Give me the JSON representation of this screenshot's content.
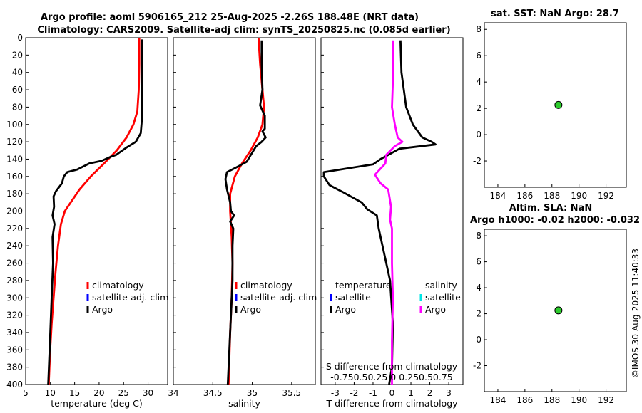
{
  "header": {
    "title_line1": "Argo profile: aoml 5906165_212 25-Aug-2025 -2.26S 188.48E (NRT data)",
    "title_line2": "Climatology: CARS2009. Satellite-adj clim: synTS_20250825.nc (0.085d earlier)"
  },
  "sst_title": "sat. SST: NaN Argo: 28.7",
  "sla_title_line1": "Altim. SLA: NaN",
  "sla_title_line2": "Argo h1000: -0.02 h2000: -0.032",
  "footer_stamp": "©IMOS 30-Aug-2025 11:40:33",
  "s_diff_label_line1": "S difference from climatology",
  "s_diff_label_line2": "-0.750.50.25 0 0.250.50.75",
  "colors": {
    "climatology": "#ff0000",
    "satellite": "#0000ff",
    "satellite_salinity": "#00e5e5",
    "argo": "#000000",
    "salinity_diff": "#ff00ff",
    "marker": "#2ecc2e"
  },
  "chart_data": [
    {
      "id": "temperature",
      "type": "line",
      "xlabel": "temperature (deg C)",
      "ylabel": "",
      "xlim": [
        5,
        34
      ],
      "ylim": [
        0,
        400
      ],
      "y_reversed": true,
      "xticks": [
        5,
        10,
        15,
        20,
        25,
        30
      ],
      "yticks": [
        0,
        20,
        40,
        60,
        80,
        100,
        120,
        140,
        160,
        180,
        200,
        220,
        240,
        260,
        280,
        300,
        320,
        340,
        360,
        380,
        400
      ],
      "legend": {
        "position": "center-right",
        "entries": [
          "climatology",
          "satellite-adj. clim",
          "Argo"
        ]
      },
      "series": [
        {
          "name": "climatology",
          "color_key": "climatology",
          "points": [
            [
              28.2,
              0
            ],
            [
              28.2,
              30
            ],
            [
              28.1,
              60
            ],
            [
              27.8,
              85
            ],
            [
              27.0,
              100
            ],
            [
              25.6,
              115
            ],
            [
              23.6,
              130
            ],
            [
              21.0,
              145
            ],
            [
              18.3,
              160
            ],
            [
              16.0,
              175
            ],
            [
              14.2,
              190
            ],
            [
              13.0,
              200
            ],
            [
              12.2,
              215
            ],
            [
              11.6,
              240
            ],
            [
              11.1,
              270
            ],
            [
              10.7,
              300
            ],
            [
              10.3,
              330
            ],
            [
              10.0,
              360
            ],
            [
              9.7,
              400
            ]
          ]
        },
        {
          "name": "Argo",
          "color_key": "argo",
          "points": [
            [
              28.7,
              2
            ],
            [
              28.7,
              40
            ],
            [
              28.8,
              90
            ],
            [
              28.5,
              110
            ],
            [
              27.5,
              120
            ],
            [
              25.5,
              127
            ],
            [
              23.5,
              135
            ],
            [
              22.5,
              137
            ],
            [
              20.5,
              142
            ],
            [
              18.0,
              145
            ],
            [
              15.5,
              152
            ],
            [
              13.5,
              155
            ],
            [
              12.8,
              160
            ],
            [
              12.4,
              168
            ],
            [
              11.2,
              177
            ],
            [
              10.7,
              183
            ],
            [
              10.8,
              195
            ],
            [
              10.5,
              205
            ],
            [
              10.9,
              215
            ],
            [
              10.5,
              230
            ],
            [
              10.6,
              260
            ],
            [
              10.3,
              300
            ],
            [
              10.1,
              330
            ],
            [
              9.9,
              360
            ],
            [
              9.6,
              400
            ]
          ]
        }
      ]
    },
    {
      "id": "salinity",
      "type": "line",
      "xlabel": "salinity",
      "ylabel": "",
      "xlim": [
        34,
        35.8
      ],
      "ylim": [
        0,
        400
      ],
      "y_reversed": true,
      "xticks": [
        34,
        34.5,
        35,
        35.5
      ],
      "legend": {
        "position": "center-right",
        "entries": [
          "climatology",
          "satellite-adj. clim",
          "Argo"
        ]
      },
      "series": [
        {
          "name": "climatology",
          "color_key": "climatology",
          "points": [
            [
              35.08,
              0
            ],
            [
              35.1,
              30
            ],
            [
              35.13,
              60
            ],
            [
              35.15,
              80
            ],
            [
              35.13,
              100
            ],
            [
              35.07,
              115
            ],
            [
              34.98,
              130
            ],
            [
              34.87,
              145
            ],
            [
              34.78,
              160
            ],
            [
              34.72,
              180
            ],
            [
              34.72,
              200
            ],
            [
              34.74,
              230
            ],
            [
              34.75,
              260
            ],
            [
              34.74,
              300
            ],
            [
              34.72,
              340
            ],
            [
              34.7,
              400
            ]
          ]
        },
        {
          "name": "Argo",
          "color_key": "argo",
          "points": [
            [
              35.12,
              3
            ],
            [
              35.12,
              30
            ],
            [
              35.13,
              60
            ],
            [
              35.1,
              78
            ],
            [
              35.16,
              90
            ],
            [
              35.16,
              105
            ],
            [
              35.13,
              108
            ],
            [
              35.17,
              115
            ],
            [
              35.12,
              120
            ],
            [
              35.05,
              125
            ],
            [
              34.97,
              137
            ],
            [
              34.93,
              143
            ],
            [
              34.83,
              148
            ],
            [
              34.68,
              155
            ],
            [
              34.66,
              163
            ],
            [
              34.68,
              175
            ],
            [
              34.72,
              190
            ],
            [
              34.73,
              200
            ],
            [
              34.77,
              205
            ],
            [
              34.72,
              212
            ],
            [
              34.76,
              220
            ],
            [
              34.75,
              240
            ],
            [
              34.75,
              280
            ],
            [
              34.73,
              320
            ],
            [
              34.71,
              360
            ],
            [
              34.69,
              400
            ]
          ]
        }
      ]
    },
    {
      "id": "difference",
      "type": "line",
      "xlabel": "T difference from climatology",
      "ylabel": "",
      "xlim": [
        -3.75,
        3.75
      ],
      "ylim": [
        0,
        400
      ],
      "y_reversed": true,
      "xticks": [
        -3,
        -2,
        -1,
        0,
        1,
        2,
        3
      ],
      "legend": {
        "position": "center",
        "groups": [
          {
            "title": "temperature",
            "entries": [
              "satellite",
              "Argo"
            ]
          },
          {
            "title": "salinity",
            "entries": [
              "satellite",
              "Argo"
            ]
          }
        ]
      },
      "series": [
        {
          "name": "T difference (Argo)",
          "color_key": "argo",
          "points": [
            [
              0.45,
              3
            ],
            [
              0.5,
              40
            ],
            [
              0.75,
              80
            ],
            [
              1.1,
              100
            ],
            [
              1.6,
              115
            ],
            [
              2.1,
              120
            ],
            [
              2.3,
              123
            ],
            [
              0.4,
              128
            ],
            [
              -0.6,
              140
            ],
            [
              -1.0,
              146
            ],
            [
              -3.6,
              155
            ],
            [
              -3.6,
              160
            ],
            [
              -3.3,
              170
            ],
            [
              -2.6,
              178
            ],
            [
              -1.6,
              190
            ],
            [
              -1.3,
              198
            ],
            [
              -0.8,
              205
            ],
            [
              -0.7,
              220
            ],
            [
              -0.5,
              240
            ],
            [
              -0.1,
              280
            ],
            [
              0.05,
              330
            ],
            [
              0.0,
              380
            ],
            [
              -0.15,
              400
            ]
          ]
        },
        {
          "name": "S difference (Argo)",
          "color_key": "salinity_diff",
          "points": [
            [
              0.05,
              3
            ],
            [
              0.05,
              50
            ],
            [
              0.0,
              80
            ],
            [
              0.15,
              100
            ],
            [
              0.3,
              115
            ],
            [
              0.55,
              120
            ],
            [
              0.15,
              125
            ],
            [
              -0.3,
              135
            ],
            [
              -0.35,
              145
            ],
            [
              -0.9,
              158
            ],
            [
              -0.6,
              168
            ],
            [
              -0.2,
              175
            ],
            [
              -0.05,
              195
            ],
            [
              -0.1,
              210
            ],
            [
              0.0,
              220
            ],
            [
              0.0,
              260
            ],
            [
              0.05,
              300
            ],
            [
              0.0,
              350
            ],
            [
              0.0,
              400
            ]
          ]
        }
      ]
    },
    {
      "id": "sst",
      "type": "scatter",
      "title": "sat. SST: NaN Argo: 28.7",
      "xlim": [
        183,
        193.5
      ],
      "ylim": [
        -4,
        8.5
      ],
      "xticks": [
        184,
        186,
        188,
        190,
        192
      ],
      "yticks": [
        -2,
        0,
        2,
        4,
        6,
        8
      ],
      "points": [
        {
          "x": 188.48,
          "y": 2.26
        }
      ]
    },
    {
      "id": "sla",
      "type": "scatter",
      "title": "Altim. SLA: NaN",
      "xlim": [
        183,
        193.5
      ],
      "ylim": [
        -4,
        8.5
      ],
      "xticks": [
        184,
        186,
        188,
        190,
        192
      ],
      "yticks": [
        -2,
        0,
        2,
        4,
        6,
        8
      ],
      "points": [
        {
          "x": 188.48,
          "y": 2.26
        }
      ]
    }
  ]
}
